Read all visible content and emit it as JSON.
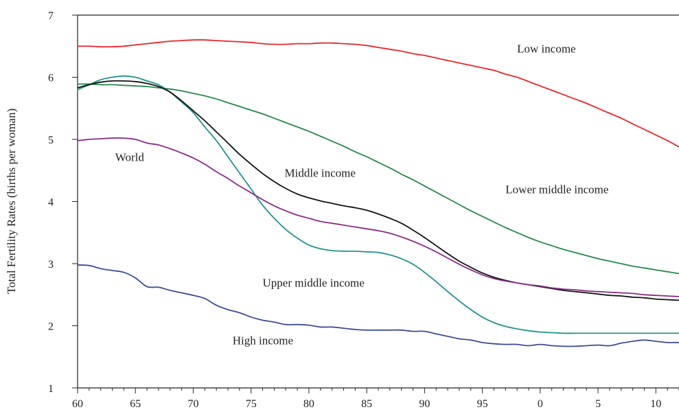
{
  "chart_data": {
    "type": "line",
    "title": "",
    "xlabel": "",
    "ylabel": "Total Fertility Rates (births per woman)",
    "xlim": [
      1960,
      2012
    ],
    "ylim": [
      1,
      7
    ],
    "grid": false,
    "x_ticks": [
      1960,
      1965,
      1970,
      1975,
      1980,
      1985,
      1990,
      1995,
      2000,
      2005,
      2010
    ],
    "x_tick_labels": [
      "60",
      "65",
      "70",
      "75",
      "80",
      "85",
      "90",
      "95",
      "0",
      "5",
      "10"
    ],
    "y_ticks": [
      1,
      2,
      3,
      4,
      5,
      6,
      7
    ],
    "y_tick_labels": [
      "1",
      "2",
      "3",
      "4",
      "5",
      "6",
      "7"
    ],
    "x": [
      1960,
      1961,
      1962,
      1963,
      1964,
      1965,
      1966,
      1967,
      1968,
      1969,
      1970,
      1971,
      1972,
      1973,
      1974,
      1975,
      1976,
      1977,
      1978,
      1979,
      1980,
      1981,
      1982,
      1983,
      1984,
      1985,
      1986,
      1987,
      1988,
      1989,
      1990,
      1991,
      1992,
      1993,
      1994,
      1995,
      1996,
      1997,
      1998,
      1999,
      2000,
      2001,
      2002,
      2003,
      2004,
      2005,
      2006,
      2007,
      2008,
      2009,
      2010,
      2011,
      2012
    ],
    "series": [
      {
        "name": "Low income",
        "color": "#e8262a",
        "values": [
          6.5,
          6.5,
          6.49,
          6.49,
          6.5,
          6.52,
          6.54,
          6.56,
          6.58,
          6.59,
          6.6,
          6.6,
          6.59,
          6.58,
          6.57,
          6.56,
          6.54,
          6.53,
          6.53,
          6.54,
          6.54,
          6.55,
          6.55,
          6.54,
          6.53,
          6.51,
          6.48,
          6.45,
          6.42,
          6.38,
          6.35,
          6.31,
          6.27,
          6.23,
          6.19,
          6.15,
          6.11,
          6.05,
          6.0,
          5.93,
          5.86,
          5.79,
          5.72,
          5.65,
          5.58,
          5.5,
          5.42,
          5.34,
          5.25,
          5.16,
          5.07,
          4.98,
          4.88
        ]
      },
      {
        "name": "Lower middle income",
        "color": "#23894a",
        "values": [
          5.89,
          5.89,
          5.88,
          5.88,
          5.87,
          5.86,
          5.85,
          5.83,
          5.81,
          5.78,
          5.74,
          5.7,
          5.65,
          5.59,
          5.53,
          5.47,
          5.41,
          5.34,
          5.27,
          5.2,
          5.13,
          5.05,
          4.97,
          4.89,
          4.8,
          4.72,
          4.63,
          4.54,
          4.44,
          4.35,
          4.25,
          4.15,
          4.05,
          3.95,
          3.85,
          3.76,
          3.67,
          3.58,
          3.5,
          3.42,
          3.35,
          3.29,
          3.23,
          3.18,
          3.13,
          3.08,
          3.04,
          3.0,
          2.96,
          2.93,
          2.9,
          2.87,
          2.84
        ]
      },
      {
        "name": "Upper middle income",
        "color": "#1d938d",
        "values": [
          5.8,
          5.88,
          5.96,
          6.0,
          6.02,
          6.0,
          5.94,
          5.88,
          5.76,
          5.6,
          5.43,
          5.2,
          4.98,
          4.72,
          4.46,
          4.2,
          3.94,
          3.73,
          3.55,
          3.41,
          3.3,
          3.24,
          3.21,
          3.2,
          3.2,
          3.19,
          3.18,
          3.14,
          3.08,
          2.99,
          2.86,
          2.71,
          2.55,
          2.4,
          2.26,
          2.14,
          2.05,
          1.99,
          1.95,
          1.92,
          1.9,
          1.89,
          1.88,
          1.88,
          1.88,
          1.88,
          1.88,
          1.88,
          1.88,
          1.88,
          1.88,
          1.88,
          1.88
        ]
      },
      {
        "name": "Middle income",
        "color": "#111111",
        "values": [
          5.83,
          5.88,
          5.92,
          5.94,
          5.94,
          5.93,
          5.9,
          5.85,
          5.76,
          5.62,
          5.46,
          5.3,
          5.12,
          4.94,
          4.76,
          4.6,
          4.45,
          4.32,
          4.21,
          4.12,
          4.06,
          4.01,
          3.97,
          3.93,
          3.9,
          3.86,
          3.8,
          3.73,
          3.65,
          3.54,
          3.42,
          3.29,
          3.16,
          3.04,
          2.94,
          2.85,
          2.78,
          2.73,
          2.69,
          2.66,
          2.63,
          2.6,
          2.57,
          2.55,
          2.53,
          2.51,
          2.49,
          2.48,
          2.46,
          2.45,
          2.43,
          2.42,
          2.41
        ]
      },
      {
        "name": "World",
        "color": "#8a2c86",
        "values": [
          4.98,
          5.0,
          5.01,
          5.02,
          5.02,
          5.0,
          4.94,
          4.91,
          4.85,
          4.78,
          4.7,
          4.6,
          4.48,
          4.37,
          4.25,
          4.14,
          4.03,
          3.93,
          3.85,
          3.78,
          3.73,
          3.68,
          3.65,
          3.62,
          3.59,
          3.56,
          3.53,
          3.49,
          3.43,
          3.36,
          3.28,
          3.19,
          3.09,
          2.99,
          2.9,
          2.82,
          2.76,
          2.72,
          2.69,
          2.66,
          2.64,
          2.61,
          2.59,
          2.58,
          2.56,
          2.55,
          2.54,
          2.53,
          2.52,
          2.5,
          2.49,
          2.48,
          2.47
        ]
      },
      {
        "name": "High income",
        "color": "#3c4a99",
        "values": [
          2.98,
          2.97,
          2.92,
          2.89,
          2.86,
          2.77,
          2.63,
          2.62,
          2.57,
          2.53,
          2.49,
          2.44,
          2.33,
          2.26,
          2.21,
          2.14,
          2.09,
          2.06,
          2.02,
          2.02,
          2.01,
          1.98,
          1.98,
          1.96,
          1.94,
          1.93,
          1.93,
          1.93,
          1.93,
          1.91,
          1.91,
          1.87,
          1.83,
          1.79,
          1.77,
          1.73,
          1.71,
          1.7,
          1.7,
          1.68,
          1.7,
          1.68,
          1.67,
          1.67,
          1.68,
          1.69,
          1.68,
          1.72,
          1.75,
          1.77,
          1.75,
          1.73,
          1.73
        ]
      }
    ]
  }
}
